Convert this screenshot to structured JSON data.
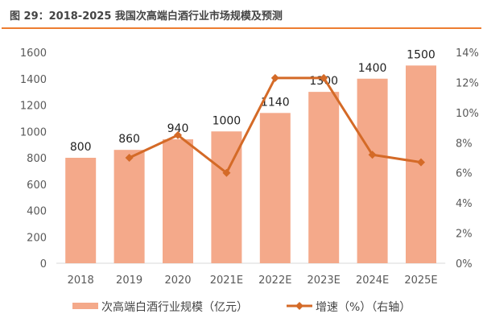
{
  "title": "图 29：2018-2025 我国次高端白酒行业市场规模及预测",
  "colors": {
    "bar": "#F4A98A",
    "line": "#D46A27",
    "rule": "#ED7D31"
  },
  "chart_data": {
    "type": "bar+line",
    "categories": [
      "2018",
      "2019",
      "2020",
      "2021E",
      "2022E",
      "2023E",
      "2024E",
      "2025E"
    ],
    "series": [
      {
        "name": "次高端白酒行业规模（亿元）",
        "type": "bar",
        "axis": "left",
        "values": [
          800,
          860,
          940,
          1000,
          1140,
          1300,
          1400,
          1500
        ],
        "labels": [
          "800",
          "860",
          "940",
          "1000",
          "1140",
          "1300",
          "1400",
          "1500"
        ]
      },
      {
        "name": "增速（%）（右轴）",
        "type": "line",
        "axis": "right",
        "values": [
          null,
          7.0,
          8.5,
          6.0,
          12.3,
          12.3,
          7.2,
          6.7
        ]
      }
    ],
    "left_axis": {
      "ylim": [
        0,
        1600
      ],
      "ticks": [
        "0",
        "200",
        "400",
        "600",
        "800",
        "1000",
        "1200",
        "1400",
        "1600"
      ]
    },
    "right_axis": {
      "ylim": [
        0,
        14
      ],
      "ticks": [
        "0%",
        "2%",
        "4%",
        "6%",
        "8%",
        "10%",
        "12%",
        "14%"
      ]
    },
    "grid": false,
    "legend": "bottom"
  }
}
